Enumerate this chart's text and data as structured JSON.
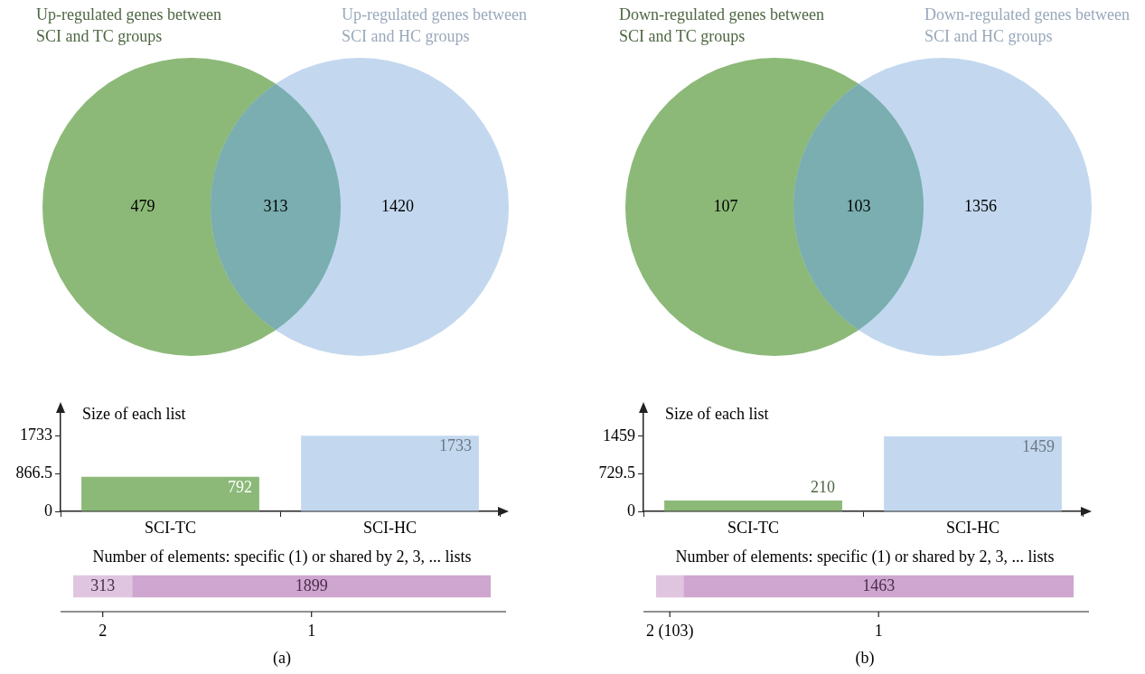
{
  "chart_data": [
    {
      "type": "other",
      "categories": [
        null,
        null,
        null
      ],
      "values": [
        479,
        313,
        1420
      ],
      "colors": [
        "#8cb978",
        "#7aaeb0",
        "#c3d8ef"
      ],
      "data_labels": true,
      "annotations": [
        "Up-regulated genes between SCI and TC groups",
        "Up-regulated genes between SCI and HC groups"
      ]
    },
    {
      "type": "bar",
      "title": "Size of each list",
      "categories": [
        "SCI-TC",
        "SCI-HC"
      ],
      "values": [
        792,
        1733
      ],
      "colors": [
        "#8cb978",
        "#c3d8ef"
      ],
      "ylim": [
        0,
        2300
      ],
      "yticks": [
        0,
        866.5,
        1733
      ],
      "data_labels": true
    },
    {
      "type": "other",
      "title": "Number of elements: specific (1) or shared by 2, 3, ... lists",
      "categories": [
        "2",
        "1"
      ],
      "values": [
        313,
        1899
      ],
      "colors": [
        "#e0c5e0",
        "#cfa6d0"
      ],
      "data_labels": true,
      "annotations": [
        "(a)"
      ]
    },
    {
      "type": "other",
      "categories": [
        null,
        null,
        null
      ],
      "values": [
        107,
        103,
        1356
      ],
      "colors": [
        "#8cb978",
        "#7aaeb0",
        "#c3d8ef"
      ],
      "data_labels": true,
      "annotations": [
        "Down-regulated genes between SCI and TC groups",
        "Down-regulated genes between SCI and HC groups"
      ]
    },
    {
      "type": "bar",
      "title": "Size of each list",
      "categories": [
        "SCI-TC",
        "SCI-HC"
      ],
      "values": [
        210,
        1459
      ],
      "colors": [
        "#8cb978",
        "#c3d8ef"
      ],
      "ylim": [
        0,
        1950
      ],
      "yticks": [
        0,
        729.5,
        1459
      ],
      "data_labels": true
    },
    {
      "type": "other",
      "title": "Number of elements: specific (1) or shared by 2, 3, ... lists",
      "categories": [
        "2",
        "1"
      ],
      "values": [
        103,
        1463
      ],
      "colors": [
        "#e0c5e0",
        "#cfa6d0"
      ],
      "value_labels": [
        "(103)",
        "1463"
      ],
      "annotations": [
        "(b)"
      ]
    }
  ]
}
